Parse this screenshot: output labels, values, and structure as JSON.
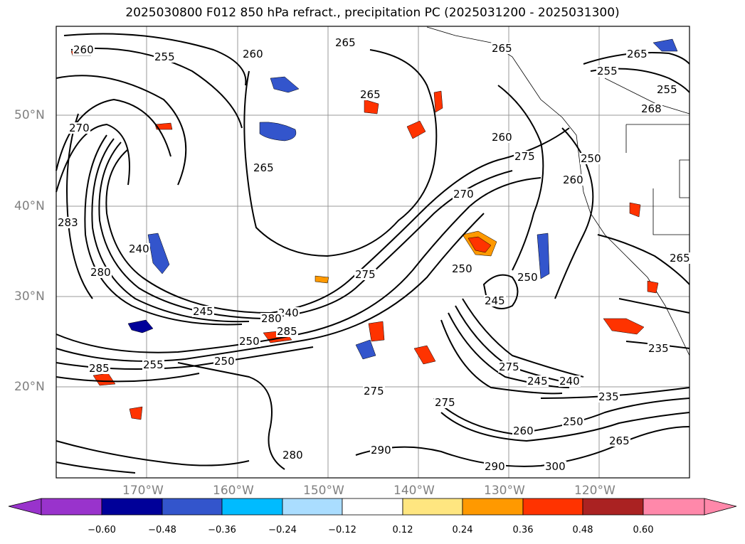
{
  "title": "2025030800 F012 850 hPa refract., precipitation PC (2025031200 - 2025031300)",
  "lat_labels": [
    "50°N",
    "40°N",
    "30°N",
    "20°N"
  ],
  "lon_labels": [
    "170°W",
    "160°W",
    "150°W",
    "140°W",
    "130°W",
    "120°W"
  ],
  "contour_labels": [
    "260",
    "255",
    "260",
    "265",
    "265",
    "255",
    "255",
    "265",
    "268",
    "270",
    "265",
    "260",
    "275",
    "250",
    "260",
    "283",
    "240",
    "270",
    "265",
    "280",
    "240",
    "275",
    "250",
    "250",
    "245",
    "250",
    "245",
    "280",
    "285",
    "275",
    "255",
    "285",
    "250",
    "275",
    "245",
    "240",
    "235",
    "235",
    "290",
    "250",
    "265",
    "260",
    "290",
    "300",
    "280",
    "275",
    "265"
  ],
  "colorbar": {
    "ticks": [
      "−0.60",
      "−0.48",
      "−0.36",
      "−0.24",
      "−0.12",
      "0.12",
      "0.24",
      "0.36",
      "0.48",
      "0.60"
    ],
    "colors": [
      "#9933cc",
      "#000099",
      "#3355cc",
      "#00bbff",
      "#aaddff",
      "#ffffff",
      "#ffe680",
      "#ff9900",
      "#ff3300",
      "#aa2222",
      "#ff88aa"
    ]
  }
}
